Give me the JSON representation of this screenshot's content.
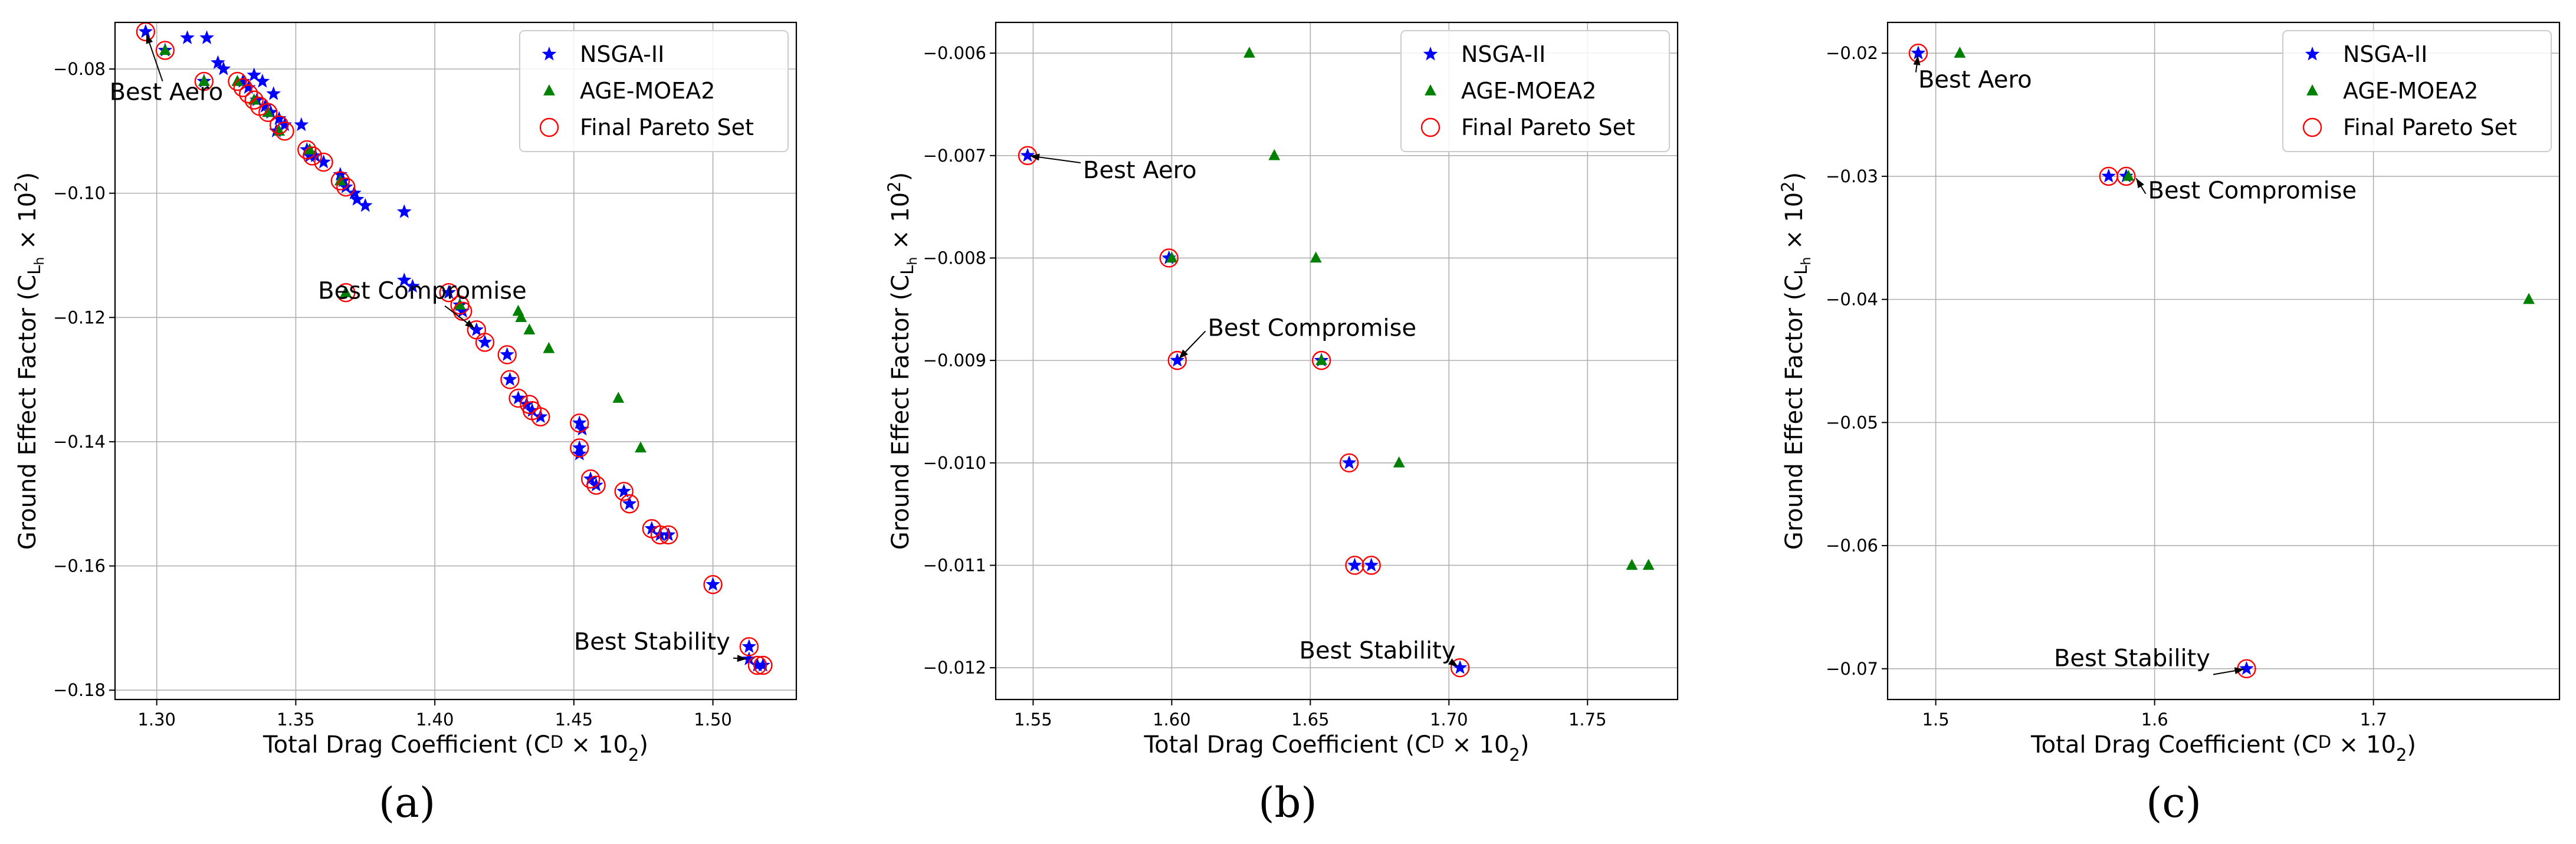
{
  "chart_data": [
    {
      "type": "scatter",
      "panel_label": "(a)",
      "xlabel": "Total Drag Coefficient (C",
      "xlabel_sub": "D",
      "xlabel_tail": " × 10",
      "xlabel_sup": "2",
      "xlabel_end": ")",
      "ylabel": "Ground Effect Factor (C",
      "ylabel_sub": "L",
      "ylabel_subsub": "h",
      "ylabel_tail": " × 10",
      "ylabel_sup": "2",
      "ylabel_end": ")",
      "xlim": [
        1.285,
        1.53
      ],
      "ylim": [
        -0.1815,
        -0.0725
      ],
      "xticks": [
        1.3,
        1.35,
        1.4,
        1.45,
        1.5
      ],
      "xtick_labels": [
        "1.30",
        "1.35",
        "1.40",
        "1.45",
        "1.50"
      ],
      "yticks": [
        -0.18,
        -0.16,
        -0.14,
        -0.12,
        -0.1,
        -0.08
      ],
      "ytick_labels": [
        "−0.18",
        "−0.16",
        "−0.14",
        "−0.12",
        "−0.10",
        "−0.08"
      ],
      "grid": true,
      "legend_position": "top-right",
      "series": [
        {
          "name": "NSGA-II",
          "marker": "star",
          "color": "#0000ff",
          "points": [
            [
              1.296,
              -0.074
            ],
            [
              1.303,
              -0.077
            ],
            [
              1.311,
              -0.075
            ],
            [
              1.318,
              -0.075
            ],
            [
              1.322,
              -0.079
            ],
            [
              1.324,
              -0.08
            ],
            [
              1.317,
              -0.082
            ],
            [
              1.331,
              -0.082
            ],
            [
              1.335,
              -0.081
            ],
            [
              1.338,
              -0.082
            ],
            [
              1.342,
              -0.084
            ],
            [
              1.333,
              -0.083
            ],
            [
              1.336,
              -0.085
            ],
            [
              1.339,
              -0.086
            ],
            [
              1.341,
              -0.087
            ],
            [
              1.344,
              -0.088
            ],
            [
              1.346,
              -0.089
            ],
            [
              1.352,
              -0.089
            ],
            [
              1.343,
              -0.09
            ],
            [
              1.354,
              -0.093
            ],
            [
              1.355,
              -0.094
            ],
            [
              1.357,
              -0.094
            ],
            [
              1.36,
              -0.095
            ],
            [
              1.366,
              -0.097
            ],
            [
              1.367,
              -0.098
            ],
            [
              1.368,
              -0.099
            ],
            [
              1.371,
              -0.1
            ],
            [
              1.372,
              -0.101
            ],
            [
              1.375,
              -0.102
            ],
            [
              1.389,
              -0.103
            ],
            [
              1.389,
              -0.114
            ],
            [
              1.392,
              -0.115
            ],
            [
              1.405,
              -0.116
            ],
            [
              1.409,
              -0.118
            ],
            [
              1.41,
              -0.119
            ],
            [
              1.415,
              -0.122
            ],
            [
              1.418,
              -0.124
            ],
            [
              1.426,
              -0.126
            ],
            [
              1.427,
              -0.13
            ],
            [
              1.43,
              -0.133
            ],
            [
              1.433,
              -0.134
            ],
            [
              1.435,
              -0.135
            ],
            [
              1.438,
              -0.136
            ],
            [
              1.452,
              -0.137
            ],
            [
              1.453,
              -0.138
            ],
            [
              1.452,
              -0.141
            ],
            [
              1.452,
              -0.142
            ],
            [
              1.456,
              -0.146
            ],
            [
              1.458,
              -0.147
            ],
            [
              1.468,
              -0.148
            ],
            [
              1.47,
              -0.15
            ],
            [
              1.478,
              -0.154
            ],
            [
              1.481,
              -0.155
            ],
            [
              1.484,
              -0.155
            ],
            [
              1.5,
              -0.163
            ],
            [
              1.513,
              -0.173
            ],
            [
              1.513,
              -0.175
            ],
            [
              1.516,
              -0.176
            ],
            [
              1.518,
              -0.176
            ]
          ]
        },
        {
          "name": "AGE-MOEA2",
          "marker": "triangle",
          "color": "#008000",
          "points": [
            [
              1.303,
              -0.077
            ],
            [
              1.317,
              -0.082
            ],
            [
              1.329,
              -0.082
            ],
            [
              1.335,
              -0.085
            ],
            [
              1.34,
              -0.087
            ],
            [
              1.344,
              -0.09
            ],
            [
              1.355,
              -0.093
            ],
            [
              1.366,
              -0.098
            ],
            [
              1.368,
              -0.116
            ],
            [
              1.409,
              -0.118
            ],
            [
              1.43,
              -0.119
            ],
            [
              1.431,
              -0.12
            ],
            [
              1.434,
              -0.122
            ],
            [
              1.441,
              -0.125
            ],
            [
              1.466,
              -0.133
            ],
            [
              1.474,
              -0.141
            ]
          ]
        },
        {
          "name": "Final Pareto Set",
          "marker": "open-circle",
          "color": "#ff0000",
          "points": [
            [
              1.296,
              -0.074
            ],
            [
              1.303,
              -0.077
            ],
            [
              1.317,
              -0.082
            ],
            [
              1.329,
              -0.082
            ],
            [
              1.331,
              -0.083
            ],
            [
              1.333,
              -0.084
            ],
            [
              1.335,
              -0.085
            ],
            [
              1.337,
              -0.086
            ],
            [
              1.34,
              -0.087
            ],
            [
              1.344,
              -0.089
            ],
            [
              1.346,
              -0.09
            ],
            [
              1.354,
              -0.093
            ],
            [
              1.356,
              -0.094
            ],
            [
              1.36,
              -0.095
            ],
            [
              1.366,
              -0.098
            ],
            [
              1.368,
              -0.099
            ],
            [
              1.368,
              -0.116
            ],
            [
              1.405,
              -0.116
            ],
            [
              1.409,
              -0.118
            ],
            [
              1.41,
              -0.119
            ],
            [
              1.415,
              -0.122
            ],
            [
              1.418,
              -0.124
            ],
            [
              1.426,
              -0.126
            ],
            [
              1.427,
              -0.13
            ],
            [
              1.43,
              -0.133
            ],
            [
              1.434,
              -0.134
            ],
            [
              1.435,
              -0.135
            ],
            [
              1.438,
              -0.136
            ],
            [
              1.452,
              -0.137
            ],
            [
              1.452,
              -0.141
            ],
            [
              1.456,
              -0.146
            ],
            [
              1.458,
              -0.147
            ],
            [
              1.468,
              -0.148
            ],
            [
              1.47,
              -0.15
            ],
            [
              1.478,
              -0.154
            ],
            [
              1.481,
              -0.155
            ],
            [
              1.484,
              -0.155
            ],
            [
              1.5,
              -0.163
            ],
            [
              1.513,
              -0.173
            ],
            [
              1.516,
              -0.176
            ],
            [
              1.518,
              -0.176
            ]
          ]
        }
      ],
      "annotations": [
        {
          "text": "Best Aero",
          "point": [
            1.296,
            -0.074
          ],
          "text_at": [
            1.283,
            -0.085
          ]
        },
        {
          "text": "Best Compromise",
          "point": [
            1.415,
            -0.122
          ],
          "text_at": [
            1.358,
            -0.117
          ]
        },
        {
          "text": "Best Stability",
          "point": [
            1.513,
            -0.175
          ],
          "text_at": [
            1.45,
            -0.1735
          ]
        }
      ]
    },
    {
      "type": "scatter",
      "panel_label": "(b)",
      "xlabel": "Total Drag Coefficient (C",
      "xlabel_sub": "D",
      "xlabel_tail": " × 10",
      "xlabel_sup": "2",
      "xlabel_end": ")",
      "ylabel": "Ground Effect Factor (C",
      "ylabel_sub": "L",
      "ylabel_subsub": "h",
      "ylabel_tail": " × 10",
      "ylabel_sup": "2",
      "ylabel_end": ")",
      "xlim": [
        1.5365,
        1.7825
      ],
      "ylim": [
        -0.01231,
        -0.0057
      ],
      "xticks": [
        1.55,
        1.6,
        1.65,
        1.7,
        1.75
      ],
      "xtick_labels": [
        "1.55",
        "1.60",
        "1.65",
        "1.70",
        "1.75"
      ],
      "yticks": [
        -0.012,
        -0.011,
        -0.01,
        -0.009,
        -0.008,
        -0.007,
        -0.006
      ],
      "ytick_labels": [
        "−0.012",
        "−0.011",
        "−0.010",
        "−0.009",
        "−0.008",
        "−0.007",
        "−0.006"
      ],
      "grid": true,
      "legend_position": "top-right",
      "series": [
        {
          "name": "NSGA-II",
          "marker": "star",
          "color": "#0000ff",
          "points": [
            [
              1.548,
              -0.007
            ],
            [
              1.599,
              -0.008
            ],
            [
              1.602,
              -0.009
            ],
            [
              1.654,
              -0.009
            ],
            [
              1.664,
              -0.01
            ],
            [
              1.666,
              -0.011
            ],
            [
              1.672,
              -0.011
            ],
            [
              1.704,
              -0.012
            ]
          ]
        },
        {
          "name": "AGE-MOEA2",
          "marker": "triangle",
          "color": "#008000",
          "points": [
            [
              1.628,
              -0.006
            ],
            [
              1.637,
              -0.007
            ],
            [
              1.6,
              -0.008
            ],
            [
              1.652,
              -0.008
            ],
            [
              1.654,
              -0.009
            ],
            [
              1.682,
              -0.01
            ],
            [
              1.766,
              -0.011
            ],
            [
              1.772,
              -0.011
            ]
          ]
        },
        {
          "name": "Final Pareto Set",
          "marker": "open-circle",
          "color": "#ff0000",
          "points": [
            [
              1.548,
              -0.007
            ],
            [
              1.599,
              -0.008
            ],
            [
              1.602,
              -0.009
            ],
            [
              1.654,
              -0.009
            ],
            [
              1.664,
              -0.01
            ],
            [
              1.666,
              -0.011
            ],
            [
              1.672,
              -0.011
            ],
            [
              1.704,
              -0.012
            ]
          ]
        }
      ],
      "annotations": [
        {
          "text": "Best Aero",
          "point": [
            1.548,
            -0.007
          ],
          "text_at": [
            1.568,
            -0.00722
          ]
        },
        {
          "text": "Best Compromise",
          "point": [
            1.602,
            -0.009
          ],
          "text_at": [
            1.613,
            -0.00876
          ]
        },
        {
          "text": "Best Stability",
          "point": [
            1.704,
            -0.012
          ],
          "text_at": [
            1.646,
            -0.01191
          ]
        }
      ]
    },
    {
      "type": "scatter",
      "panel_label": "(c)",
      "xlabel": "Total Drag Coefficient (C",
      "xlabel_sub": "D",
      "xlabel_tail": " × 10",
      "xlabel_sup": "2",
      "xlabel_end": ")",
      "ylabel": "Ground Effect Factor (C",
      "ylabel_sub": "L",
      "ylabel_subsub": "h",
      "ylabel_tail": " × 10",
      "ylabel_sup": "2",
      "ylabel_end": ")",
      "xlim": [
        1.478,
        1.785
      ],
      "ylim": [
        -0.0725,
        -0.0175
      ],
      "xticks": [
        1.5,
        1.6,
        1.7
      ],
      "xtick_labels": [
        "1.5",
        "1.6",
        "1.7"
      ],
      "yticks": [
        -0.07,
        -0.06,
        -0.05,
        -0.04,
        -0.03,
        -0.02
      ],
      "ytick_labels": [
        "−0.07",
        "−0.06",
        "−0.05",
        "−0.04",
        "−0.03",
        "−0.02"
      ],
      "grid": true,
      "legend_position": "top-right",
      "series": [
        {
          "name": "NSGA-II",
          "marker": "star",
          "color": "#0000ff",
          "points": [
            [
              1.492,
              -0.02
            ],
            [
              1.579,
              -0.03
            ],
            [
              1.587,
              -0.03
            ],
            [
              1.642,
              -0.07
            ]
          ]
        },
        {
          "name": "AGE-MOEA2",
          "marker": "triangle",
          "color": "#008000",
          "points": [
            [
              1.511,
              -0.02
            ],
            [
              1.588,
              -0.03
            ],
            [
              1.771,
              -0.04
            ]
          ]
        },
        {
          "name": "Final Pareto Set",
          "marker": "open-circle",
          "color": "#ff0000",
          "points": [
            [
              1.492,
              -0.02
            ],
            [
              1.579,
              -0.03
            ],
            [
              1.587,
              -0.03
            ],
            [
              1.642,
              -0.07
            ]
          ]
        }
      ],
      "annotations": [
        {
          "text": "Best Aero",
          "point": [
            1.492,
            -0.02
          ],
          "text_at": [
            1.492,
            -0.0228
          ]
        },
        {
          "text": "Best Compromise",
          "point": [
            1.591,
            -0.03
          ],
          "text_at": [
            1.597,
            -0.0318
          ]
        },
        {
          "text": "Best Stability",
          "point": [
            1.642,
            -0.07
          ],
          "text_at": [
            1.554,
            -0.0698
          ]
        }
      ]
    }
  ]
}
